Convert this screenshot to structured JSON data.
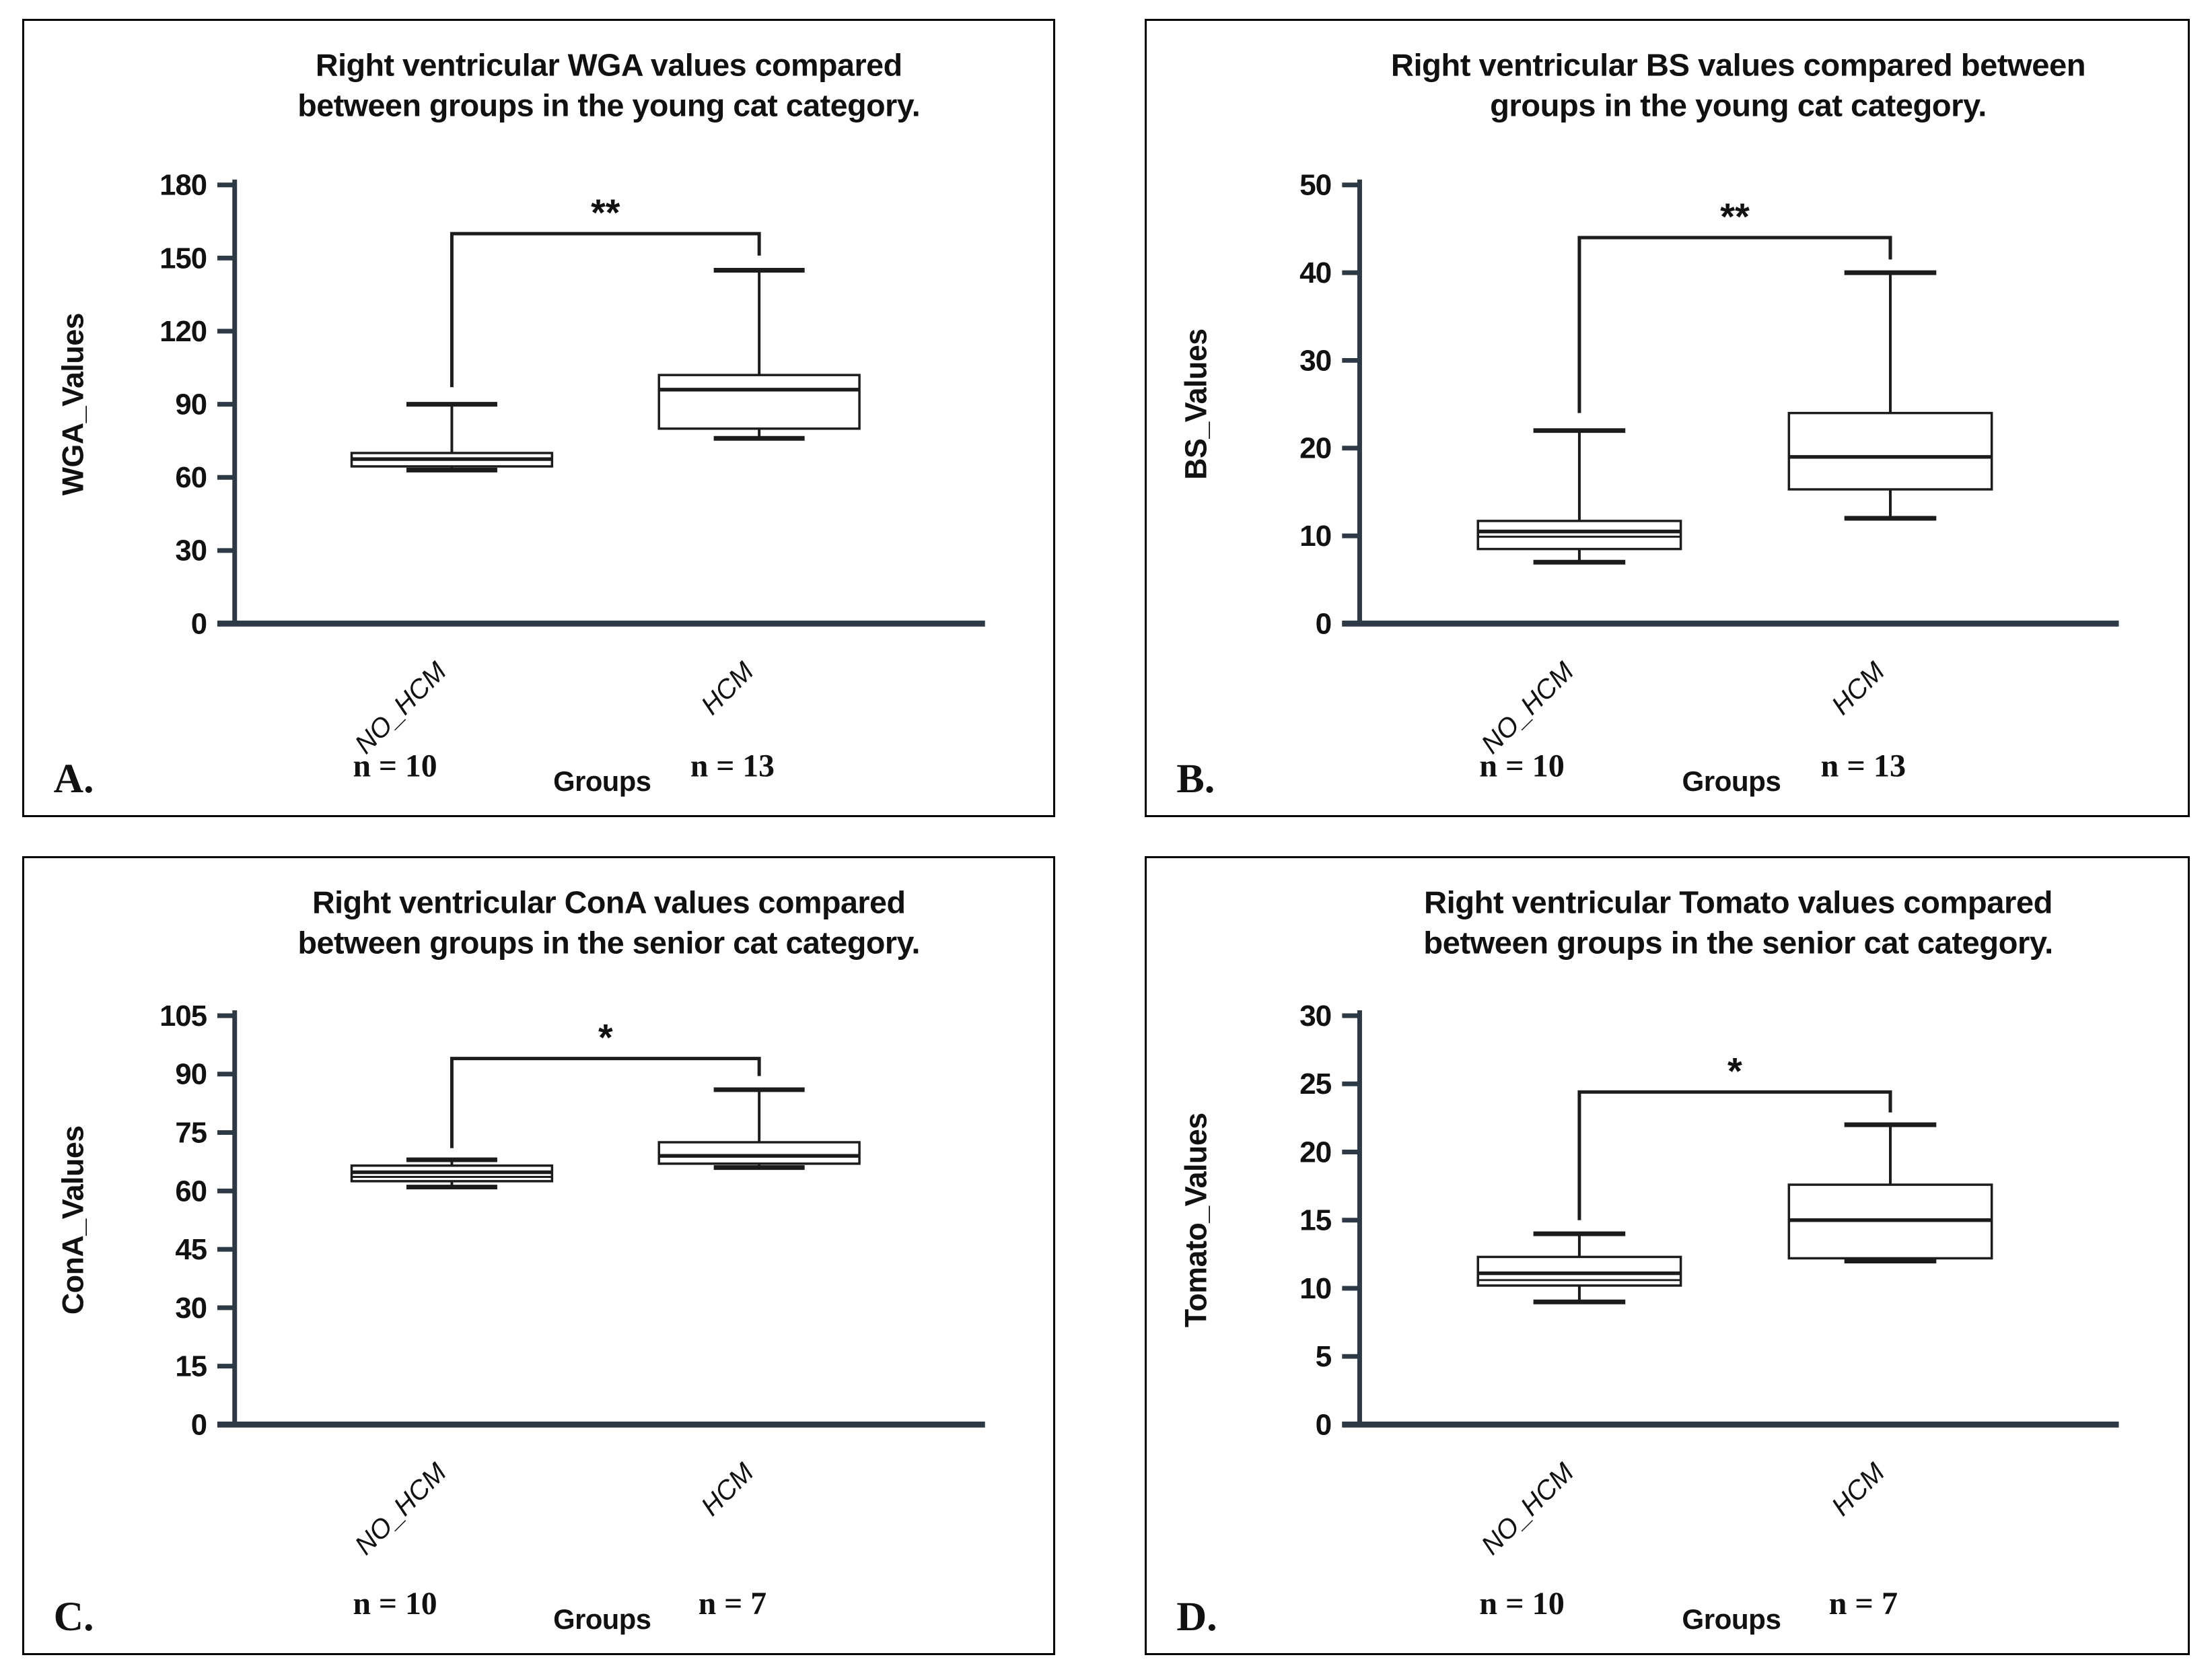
{
  "colors": {
    "background": "#ffffff",
    "panel_border": "#000000",
    "axis": "#2d3a45",
    "ink": "#111111",
    "box_stroke": "#1c1c1c",
    "box_fill": "#ffffff"
  },
  "chart_data": [
    {
      "type": "box",
      "panel_letter": "A.",
      "title": "Right ventricular WGA values compared between groups in the young cat category.",
      "title_lines": [
        "Right ventricular WGA values compared",
        "between groups in the young cat category."
      ],
      "xlabel": "Groups",
      "ylabel": "WGA_Values",
      "ylim": [
        0,
        180
      ],
      "yticks": [
        0,
        30,
        60,
        90,
        120,
        150,
        180
      ],
      "categories": [
        "NO_HCM",
        "HCM"
      ],
      "sample_sizes": [
        "n = 10",
        "n = 13"
      ],
      "series": [
        {
          "name": "NO_HCM",
          "min": 63,
          "q1": 64.5,
          "median": 67.5,
          "q3": 70,
          "max": 90
        },
        {
          "name": "HCM",
          "min": 76,
          "q1": 80,
          "median": 96,
          "q3": 102,
          "max": 145
        }
      ],
      "significance": {
        "label": "**",
        "bar_y": 160,
        "left_drop_to": 97,
        "right_drop_to": 151
      }
    },
    {
      "type": "box",
      "panel_letter": "B.",
      "title": "Right ventricular BS values compared between groups in the young cat category.",
      "title_lines": [
        "Right ventricular BS values compared between",
        "groups in the young cat category."
      ],
      "xlabel": "Groups",
      "ylabel": "BS_Values",
      "ylim": [
        0,
        50
      ],
      "yticks": [
        0,
        10,
        20,
        30,
        40,
        50
      ],
      "categories": [
        "NO_HCM",
        "HCM"
      ],
      "sample_sizes": [
        "n = 10",
        "n = 13"
      ],
      "series": [
        {
          "name": "NO_HCM",
          "min": 7,
          "q1": 8.5,
          "median": 10.5,
          "median2": 9.9,
          "q3": 11.7,
          "max": 22
        },
        {
          "name": "HCM",
          "min": 12,
          "q1": 15.3,
          "median": 19,
          "q3": 24,
          "max": 40
        }
      ],
      "significance": {
        "label": "**",
        "bar_y": 44,
        "left_drop_to": 24,
        "right_drop_to": 41.5
      }
    },
    {
      "type": "box",
      "panel_letter": "C.",
      "title": "Right ventricular ConA values compared between groups in the senior cat category.",
      "title_lines": [
        "Right ventricular ConA values compared",
        "between groups in the senior cat category."
      ],
      "xlabel": "Groups",
      "ylabel": "ConA_Values",
      "ylim": [
        0,
        105
      ],
      "yticks": [
        0,
        15,
        30,
        45,
        60,
        75,
        90,
        105
      ],
      "categories": [
        "NO_HCM",
        "HCM"
      ],
      "sample_sizes": [
        "n = 10",
        "n = 7"
      ],
      "series": [
        {
          "name": "NO_HCM",
          "min": 61,
          "q1": 62.5,
          "median": 64.8,
          "median2": 63.6,
          "q3": 66.5,
          "max": 68
        },
        {
          "name": "HCM",
          "min": 66,
          "q1": 67,
          "median": 69,
          "q3": 72.5,
          "max": 86
        }
      ],
      "significance": {
        "label": "*",
        "bar_y": 94,
        "left_drop_to": 71,
        "right_drop_to": 89.5
      }
    },
    {
      "type": "box",
      "panel_letter": "D.",
      "title": "Right ventricular Tomato values compared between groups in the senior cat category.",
      "title_lines": [
        "Right ventricular Tomato values compared",
        "between groups in the senior cat category."
      ],
      "xlabel": "Groups",
      "ylabel": "Tomato_Values",
      "ylim": [
        0,
        30
      ],
      "yticks": [
        0,
        5,
        10,
        15,
        20,
        25,
        30
      ],
      "categories": [
        "NO_HCM",
        "HCM"
      ],
      "sample_sizes": [
        "n = 10",
        "n = 7"
      ],
      "series": [
        {
          "name": "NO_HCM",
          "min": 9,
          "q1": 10.2,
          "median": 11.1,
          "median2": 10.6,
          "q3": 12.3,
          "max": 14
        },
        {
          "name": "HCM",
          "min": 12,
          "q1": 12.2,
          "median": 15,
          "q3": 17.6,
          "max": 22
        }
      ],
      "significance": {
        "label": "*",
        "bar_y": 24.4,
        "left_drop_to": 15,
        "right_drop_to": 22.9
      }
    }
  ]
}
